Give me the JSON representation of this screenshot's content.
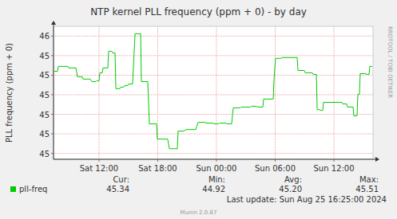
{
  "chart_data": {
    "type": "line",
    "title": "NTP kernel PLL frequency (ppm + 0) - by day",
    "y_label": "PLL frequency (ppm + 0)",
    "x": [
      7.35,
      7.76,
      7.84,
      8.82,
      8.9,
      9.64,
      9.8,
      10.29,
      10.37,
      11.1,
      11.27,
      11.68,
      11.76,
      12.0,
      12.08,
      12.33,
      12.41,
      12.9,
      12.98,
      13.31,
      13.39,
      13.64,
      13.72,
      14.13,
      14.21,
      14.53,
      14.62,
      14.94,
      15.02,
      15.43,
      15.68,
      16.25,
      16.33,
      16.98,
      17.15,
      17.88,
      17.96,
      19.02,
      19.19,
      20.0,
      20.08,
      20.66,
      20.9,
      21.88,
      22.13,
      22.78,
      22.94,
      23.6,
      23.76,
      24.25,
      24.33,
      24.98,
      25.07,
      25.55,
      25.72,
      26.45,
      26.53,
      27.51,
      27.59,
      28.08,
      28.17,
      28.74,
      28.82,
      29.8,
      29.88,
      30.04,
      30.62,
      30.7,
      32.25,
      32.33,
      32.98,
      33.07,
      33.8,
      33.89,
      34.21,
      34.29,
      34.53,
      34.62,
      34.86,
      34.94,
      36.82,
      36.9,
      37.31,
      37.39,
      37.96,
      38.04,
      38.37,
      38.45,
      38.61,
      38.69,
      39.26,
      39.35,
      39.59,
      39.67,
      39.92
    ],
    "series": [
      {
        "name": "pll-freq",
        "color": "#00cc00",
        "values": [
          45.32,
          45.32,
          45.345,
          45.345,
          45.337,
          45.337,
          45.292,
          45.292,
          45.28,
          45.28,
          45.267,
          45.267,
          45.271,
          45.271,
          45.312,
          45.312,
          45.337,
          45.337,
          45.422,
          45.422,
          45.414,
          45.414,
          45.231,
          45.231,
          45.239,
          45.239,
          45.247,
          45.247,
          45.255,
          45.255,
          45.512,
          45.512,
          45.267,
          45.267,
          45.051,
          45.051,
          44.973,
          44.973,
          44.924,
          44.924,
          45.014,
          45.014,
          45.022,
          45.022,
          45.059,
          45.059,
          45.055,
          45.055,
          45.051,
          45.051,
          45.055,
          45.055,
          45.051,
          45.051,
          45.133,
          45.133,
          45.137,
          45.137,
          45.141,
          45.141,
          45.137,
          45.137,
          45.178,
          45.178,
          45.28,
          45.386,
          45.386,
          45.39,
          45.39,
          45.324,
          45.324,
          45.312,
          45.312,
          45.304,
          45.304,
          45.124,
          45.124,
          45.12,
          45.12,
          45.161,
          45.161,
          45.153,
          45.153,
          45.137,
          45.137,
          45.092,
          45.092,
          45.202,
          45.202,
          45.308,
          45.308,
          45.304,
          45.304,
          45.345,
          45.345
        ]
      }
    ],
    "xlim": [
      7.35,
      40.0
    ],
    "xticks": [
      {
        "value": 12,
        "label": "Sat 12:00"
      },
      {
        "value": 18,
        "label": "Sat 18:00"
      },
      {
        "value": 24,
        "label": "Sun 00:00"
      },
      {
        "value": 30,
        "label": "Sun 06:00"
      },
      {
        "value": 36,
        "label": "Sun 12:00"
      }
    ],
    "ylim": [
      44.87,
      45.55
    ],
    "yticks": [
      {
        "value": 44.9,
        "label": "45"
      },
      {
        "value": 45.0,
        "label": "45"
      },
      {
        "value": 45.1,
        "label": "45"
      },
      {
        "value": 45.2,
        "label": "45"
      },
      {
        "value": 45.3,
        "label": "45"
      },
      {
        "value": 45.4,
        "label": "45"
      },
      {
        "value": 45.5,
        "label": "46"
      }
    ],
    "grid": true,
    "stats": [
      {
        "label": "Cur:",
        "value": "45.34"
      },
      {
        "label": "Min:",
        "value": "44.92"
      },
      {
        "label": "Avg:",
        "value": "45.20"
      },
      {
        "label": "Max:",
        "value": "45.51"
      }
    ],
    "footer": "Last update: Sun Aug 25 16:25:00 2024",
    "watermark": "RRDTOOL / TOBI OETIKER",
    "credit": "Munin 2.0.67"
  }
}
